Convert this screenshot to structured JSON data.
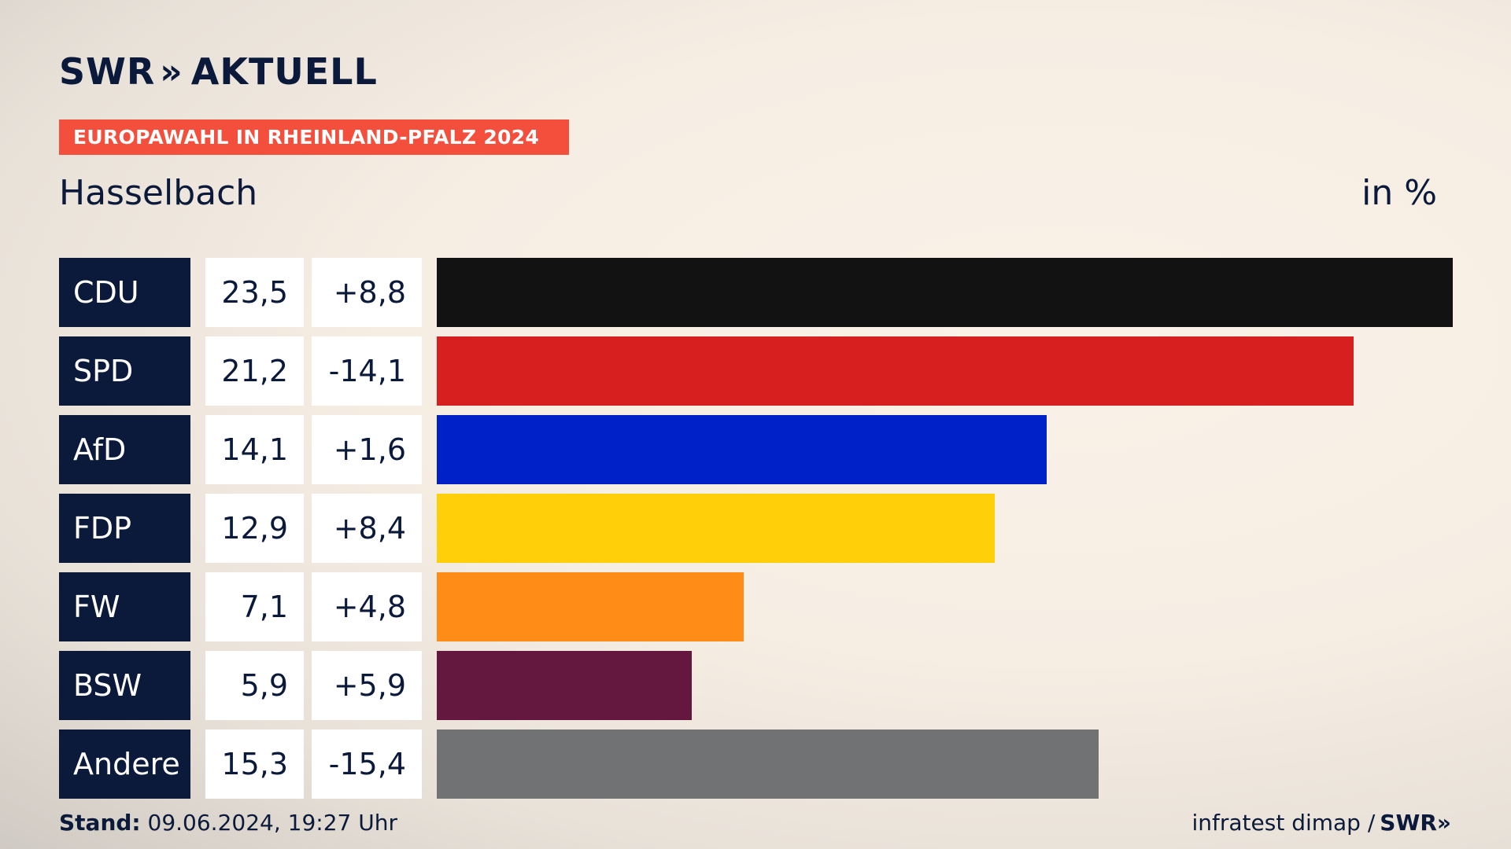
{
  "brand": {
    "swr": "SWR",
    "chevron": "»",
    "aktuell": "AKTUELL"
  },
  "tag": "EUROPAWAHL IN RHEINLAND-PFALZ 2024",
  "subtitle": "Hasselbach",
  "unit": "in %",
  "chart_data": {
    "type": "bar",
    "orientation": "horizontal",
    "title": "EUROPAWAHL IN RHEINLAND-PFALZ 2024",
    "subtitle": "Hasselbach",
    "unit": "in %",
    "categories": [
      "CDU",
      "SPD",
      "AfD",
      "FDP",
      "FW",
      "BSW",
      "Andere"
    ],
    "values": [
      23.5,
      21.2,
      14.1,
      12.9,
      7.1,
      5.9,
      15.3
    ],
    "labels": [
      "23,5",
      "21,2",
      "14,1",
      "12,9",
      "7,1",
      "5,9",
      "15,3"
    ],
    "diffs": [
      "+8,8",
      "-14,1",
      "+1,6",
      "+8,4",
      "+4,8",
      "+5,9",
      "-15,4"
    ],
    "colors": [
      "#121212",
      "#d71f1f",
      "#0020c8",
      "#ffcf0a",
      "#ff8c17",
      "#64173f",
      "#717274"
    ],
    "xlim": [
      0,
      23.5
    ],
    "grid": false
  },
  "footer": {
    "stand_label": "Stand:",
    "stand_value": " 09.06.2024, 19:27 Uhr",
    "source": "infratest dimap /",
    "source_brand": "SWR»"
  }
}
